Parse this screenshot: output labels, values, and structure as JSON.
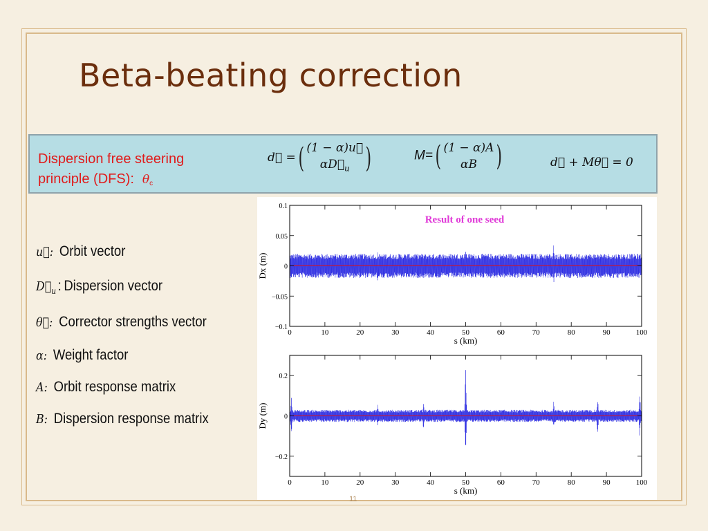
{
  "slide": {
    "title": "Beta-beating  correction",
    "page_number": "11"
  },
  "dfs": {
    "line1": "Dispersion free steering",
    "line2": "principle (DFS):",
    "theta_symbol": "θ",
    "theta_sub": "c",
    "eq_d_lhs": "d⃗ =",
    "eq_d_top": "(1 − α)u⃗",
    "eq_d_bottom_base": "αD⃗",
    "eq_d_bottom_sub": "u",
    "eq_M_lhs": "M=",
    "eq_M_top": "(1 − α)A",
    "eq_M_bottom": "αB",
    "eq_cond": "d⃗ + Mθ⃗ = 0"
  },
  "legend": [
    {
      "symbol": "u⃗:",
      "text": "Orbit vector"
    },
    {
      "symbol": "D⃗",
      "sub": "u",
      "sep": ":",
      "text": "Dispersion vector"
    },
    {
      "symbol": "θ⃗:",
      "text": "Corrector strengths vector"
    },
    {
      "symbol": "α:",
      "text": "Weight factor"
    },
    {
      "symbol": "A:",
      "text": "Orbit response matrix"
    },
    {
      "symbol": "B:",
      "text": "Dispersion response matrix"
    }
  ],
  "chart_data": [
    {
      "type": "line",
      "annotation": "Result of one seed",
      "xlabel": "s (km)",
      "ylabel": "Dx (m)",
      "xlim": [
        0,
        100
      ],
      "ylim": [
        -0.1,
        0.1
      ],
      "xticks": [
        "0",
        "10",
        "20",
        "30",
        "40",
        "50",
        "60",
        "70",
        "80",
        "90",
        "100"
      ],
      "yticks": [
        "0.1",
        "0.05",
        "0",
        "−0.05",
        "−0.1"
      ],
      "series_color": "#2323e0",
      "reference_line": {
        "y": 0,
        "color": "#e01010"
      },
      "band_amplitude": 0.02,
      "spikes": [
        {
          "x": 25,
          "amp": 0.03
        },
        {
          "x": 50,
          "amp": 0.03
        },
        {
          "x": 75,
          "amp": 0.035
        }
      ]
    },
    {
      "type": "line",
      "xlabel": "s (km)",
      "ylabel": "Dy (m)",
      "xlim": [
        0,
        100
      ],
      "ylim": [
        -0.3,
        0.3
      ],
      "xticks": [
        "0",
        "10",
        "20",
        "30",
        "40",
        "50",
        "60",
        "70",
        "80",
        "90",
        "100"
      ],
      "yticks": [
        "0.2",
        "0",
        "−0.2"
      ],
      "series_color": "#2323e0",
      "reference_line": {
        "y": 0,
        "color": "#e01010"
      },
      "band_amplitude": 0.03,
      "spikes": [
        {
          "x": 0.5,
          "amp": 0.1
        },
        {
          "x": 25,
          "amp": 0.06
        },
        {
          "x": 38,
          "amp": 0.07
        },
        {
          "x": 50,
          "amp": 0.27
        },
        {
          "x": 75,
          "amp": 0.08
        },
        {
          "x": 87.5,
          "amp": 0.1
        },
        {
          "x": 99.5,
          "amp": 0.12
        }
      ]
    }
  ]
}
